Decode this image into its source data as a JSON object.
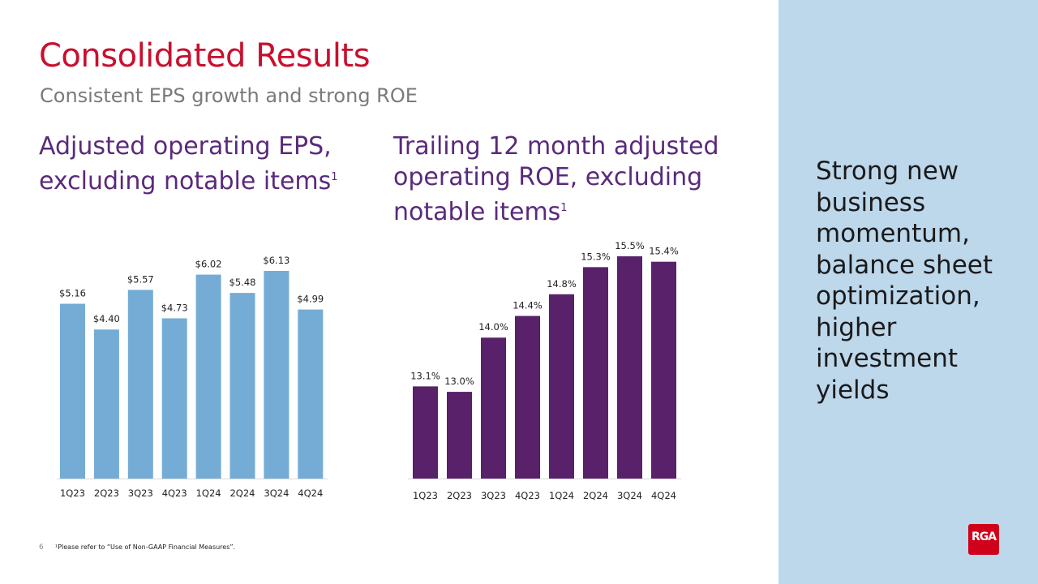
{
  "slide": {
    "title": "Consolidated Results",
    "subtitle": "Consistent EPS growth and strong ROE",
    "page_number": "6",
    "footnote": "¹Please refer to “Use of Non-GAAP Financial Measures”.",
    "sidebar_text": "Strong new business momentum, balance sheet optimization, higher investment yields",
    "logo_text": "RGA",
    "colors": {
      "title": "#c8102e",
      "heading": "#5a2a7a",
      "eps_bar": "#74acd5",
      "roe_bar": "#582169",
      "sidebar": "#bdd7eb",
      "logo": "#d0021b"
    }
  },
  "chart_data": [
    {
      "type": "bar",
      "title": "Adjusted operating EPS, excluding notable items",
      "title_superscript": "1",
      "categories": [
        "1Q23",
        "2Q23",
        "3Q23",
        "4Q23",
        "1Q24",
        "2Q24",
        "3Q24",
        "4Q24"
      ],
      "values": [
        5.16,
        4.4,
        5.57,
        4.73,
        6.02,
        5.48,
        6.13,
        4.99
      ],
      "data_labels": [
        "$5.16",
        "$4.40",
        "$5.57",
        "$4.73",
        "$6.02",
        "$5.48",
        "$6.13",
        "$4.99"
      ],
      "ylim": [
        0,
        6.13
      ],
      "grid": false,
      "color": "#74acd5"
    },
    {
      "type": "bar",
      "title": "Trailing 12 month adjusted operating ROE, excluding notable items",
      "title_superscript": "1",
      "categories": [
        "1Q23",
        "2Q23",
        "3Q23",
        "4Q23",
        "1Q24",
        "2Q24",
        "3Q24",
        "4Q24"
      ],
      "values": [
        13.1,
        13.0,
        14.0,
        14.4,
        14.8,
        15.3,
        15.5,
        15.4
      ],
      "data_labels": [
        "13.1%",
        "13.0%",
        "14.0%",
        "14.4%",
        "14.8%",
        "15.3%",
        "15.5%",
        "15.4%"
      ],
      "ylim": [
        11.4,
        15.5
      ],
      "grid": false,
      "color": "#582169"
    }
  ]
}
